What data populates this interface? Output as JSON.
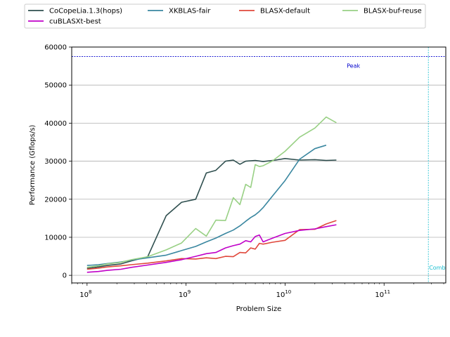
{
  "chart_data": {
    "type": "line",
    "title": "",
    "xlabel": "Problem Size",
    "ylabel": "Performance (Gflops/s)",
    "xscale": "log",
    "xlim": [
      70000000,
      420000000000
    ],
    "ylim": [
      -2000,
      60000
    ],
    "x_tick_labels": [
      "10^8",
      "10^9",
      "10^10",
      "10^11"
    ],
    "y_ticks": [
      0,
      10000,
      20000,
      30000,
      40000,
      50000,
      60000
    ],
    "grid": "horizontal",
    "legend_placement": "top, outside, 4 columns",
    "reference_lines": [
      {
        "label": "Peak",
        "orientation": "horizontal",
        "value": 57500,
        "color": "#0000cc"
      },
      {
        "label": "Combined",
        "orientation": "vertical",
        "value": 280000000000,
        "color": "#17becf"
      }
    ],
    "series": [
      {
        "name": "CoCopeLia.1.3(hops)",
        "color": "#2f4f4f",
        "x": [
          100000000.0,
          130000000.0,
          160000000.0,
          220000000.0,
          280000000.0,
          410000000.0,
          630000000.0,
          900000000.0,
          1250000000.0,
          1600000000.0,
          2000000000.0,
          2500000000.0,
          3000000000.0,
          3500000000.0,
          4000000000.0,
          5000000000.0,
          6000000000.0,
          8000000000.0,
          10000000000.0,
          14000000000.0,
          20000000000.0,
          26000000000.0,
          33000000000.0
        ],
        "y": [
          1800,
          2200,
          2600,
          3000,
          3800,
          4900,
          15700,
          19200,
          20000,
          26900,
          27600,
          30000,
          30300,
          29200,
          30000,
          30200,
          29900,
          30300,
          30700,
          30300,
          30400,
          30200,
          30300
        ]
      },
      {
        "name": "XKBLAS-fair",
        "color": "#3a87a0",
        "x": [
          100000000.0,
          130000000.0,
          160000000.0,
          220000000.0,
          280000000.0,
          410000000.0,
          630000000.0,
          900000000.0,
          1250000000.0,
          1600000000.0,
          2000000000.0,
          2500000000.0,
          3000000000.0,
          3500000000.0,
          4000000000.0,
          4500000000.0,
          5000000000.0,
          5500000000.0,
          6000000000.0,
          7500000000.0,
          10000000000.0,
          14000000000.0,
          20000000000.0,
          26000000000.0
        ],
        "y": [
          2600,
          2800,
          3100,
          3500,
          4000,
          4600,
          5300,
          6500,
          7600,
          8800,
          9800,
          11000,
          11900,
          13000,
          14200,
          15200,
          15900,
          16800,
          17800,
          20900,
          24900,
          30500,
          33300,
          34200
        ]
      },
      {
        "name": "BLASX-default",
        "color": "#e0483c",
        "x": [
          100000000.0,
          130000000.0,
          160000000.0,
          220000000.0,
          280000000.0,
          410000000.0,
          630000000.0,
          900000000.0,
          1250000000.0,
          1600000000.0,
          2000000000.0,
          2500000000.0,
          3000000000.0,
          3500000000.0,
          4000000000.0,
          4500000000.0,
          5000000000.0,
          5500000000.0,
          6000000000.0,
          7500000000.0,
          10000000000.0,
          14000000000.0,
          20000000000.0,
          26000000000.0,
          33000000000.0
        ],
        "y": [
          1600,
          1900,
          2200,
          2500,
          2800,
          3200,
          3800,
          4400,
          4300,
          4600,
          4400,
          5000,
          4900,
          6000,
          5900,
          7200,
          6900,
          8400,
          8200,
          8700,
          9200,
          12000,
          12100,
          13500,
          14400
        ]
      },
      {
        "name": "BLASX-buf-reuse",
        "color": "#98d084",
        "x": [
          100000000.0,
          130000000.0,
          160000000.0,
          220000000.0,
          280000000.0,
          410000000.0,
          630000000.0,
          900000000.0,
          1250000000.0,
          1600000000.0,
          2000000000.0,
          2500000000.0,
          3000000000.0,
          3500000000.0,
          4000000000.0,
          4500000000.0,
          5000000000.0,
          5500000000.0,
          6000000000.0,
          7500000000.0,
          10000000000.0,
          14000000000.0,
          20000000000.0,
          26000000000.0,
          33000000000.0
        ],
        "y": [
          2100,
          2500,
          3000,
          3400,
          4100,
          4900,
          6700,
          8500,
          12300,
          10300,
          14500,
          14400,
          20400,
          18600,
          23900,
          23100,
          29100,
          28600,
          28800,
          30100,
          32600,
          36300,
          38700,
          41600,
          40100
        ]
      },
      {
        "name": "cuBLASXt-best",
        "color": "#c000c8",
        "x": [
          100000000.0,
          130000000.0,
          160000000.0,
          220000000.0,
          280000000.0,
          410000000.0,
          630000000.0,
          900000000.0,
          1250000000.0,
          1600000000.0,
          2000000000.0,
          2500000000.0,
          3000000000.0,
          3500000000.0,
          4000000000.0,
          4500000000.0,
          5000000000.0,
          5500000000.0,
          6000000000.0,
          6010000000.0,
          7500000000.0,
          10000000000.0,
          14000000000.0,
          20000000000.0,
          26000000000.0,
          33000000000.0
        ],
        "y": [
          800,
          1000,
          1300,
          1600,
          2100,
          2700,
          3400,
          4100,
          5000,
          5700,
          6000,
          7200,
          7800,
          8200,
          9100,
          8800,
          10200,
          10600,
          8800,
          8800,
          9800,
          11000,
          11800,
          12200,
          12800,
          13300
        ]
      }
    ]
  }
}
